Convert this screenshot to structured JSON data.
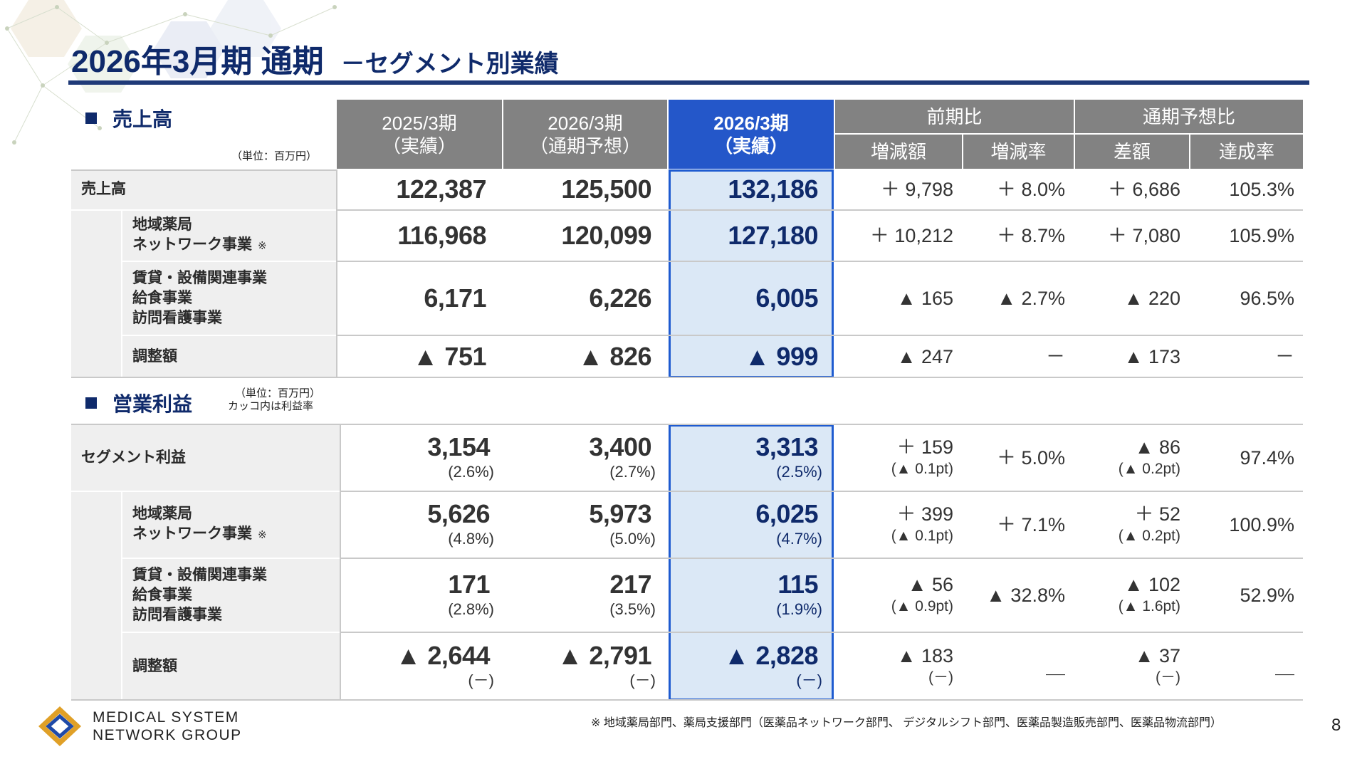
{
  "title": {
    "main": "2026年3月期 通期",
    "sub": "－セグメント別業績"
  },
  "sales": {
    "label": "売上高",
    "unit": "（単位：百万円）",
    "rows": [
      {
        "name": "売上高",
        "l1": "売上高",
        "l2": "",
        "l3": "",
        "note": "",
        "fy25": "122,387",
        "fy26f": "125,500",
        "fy26": "132,186",
        "diff": "＋ 9,798",
        "rate": "＋ 8.0%",
        "fdiff": "＋ 6,686",
        "ach": "105.3%"
      },
      {
        "name": "地域薬局ネットワーク事業",
        "l1": "地域薬局",
        "l2": "ネットワーク事業",
        "l3": "",
        "note": "※",
        "fy25": "116,968",
        "fy26f": "120,099",
        "fy26": "127,180",
        "diff": "＋ 10,212",
        "rate": "＋ 8.7%",
        "fdiff": "＋ 7,080",
        "ach": "105.9%"
      },
      {
        "name": "賃貸・設備関連事業",
        "l1": "賃貸・設備関連事業",
        "l2": "給食事業",
        "l3": "訪問看護事業",
        "note": "",
        "fy25": "6,171",
        "fy26f": "6,226",
        "fy26": "6,005",
        "diff": "▲ 165",
        "rate": "▲ 2.7%",
        "fdiff": "▲ 220",
        "ach": "96.5%"
      },
      {
        "name": "調整額",
        "l1": "調整額",
        "l2": "",
        "l3": "",
        "note": "",
        "fy25": "▲ 751",
        "fy26f": "▲ 826",
        "fy26": "▲ 999",
        "diff": "▲ 247",
        "rate": "－",
        "fdiff": "▲ 173",
        "ach": "－"
      }
    ]
  },
  "headers": {
    "fy25_l1": "2025/3期",
    "fy25_l2": "（実績）",
    "fy26f_l1": "2026/3期",
    "fy26f_l2": "（通期予想）",
    "fy26_l1": "2026/3期",
    "fy26_l2": "（実績）",
    "yoy": "前期比",
    "diff": "増減額",
    "rate": "増減率",
    "vsf": "通期予想比",
    "fdiff": "差額",
    "ach": "達成率"
  },
  "op": {
    "label": "営業利益",
    "unit_l1": "（単位：百万円）",
    "unit_l2": "カッコ内は利益率",
    "rows": [
      {
        "l1": "セグメント利益",
        "l2": "",
        "l3": "",
        "note": "",
        "fy25": "3,154",
        "fy25m": "(2.6%)",
        "fy26f": "3,400",
        "fy26fm": "(2.7%)",
        "fy26": "3,313",
        "fy26m": "(2.5%)",
        "diff": "＋ 159",
        "diffs": "(▲ 0.1pt)",
        "rate": "＋ 5.0%",
        "fdiff": "▲ 86",
        "fdiffs": "(▲ 0.2pt)",
        "ach": "97.4%"
      },
      {
        "l1": "地域薬局",
        "l2": "ネットワーク事業",
        "l3": "",
        "note": "※",
        "fy25": "5,626",
        "fy25m": "(4.8%)",
        "fy26f": "5,973",
        "fy26fm": "(5.0%)",
        "fy26": "6,025",
        "fy26m": "(4.7%)",
        "diff": "＋ 399",
        "diffs": "(▲ 0.1pt)",
        "rate": "＋ 7.1%",
        "fdiff": "＋ 52",
        "fdiffs": "(▲ 0.2pt)",
        "ach": "100.9%"
      },
      {
        "l1": "賃貸・設備関連事業",
        "l2": "給食事業",
        "l3": "訪問看護事業",
        "note": "",
        "fy25": "171",
        "fy25m": "(2.8%)",
        "fy26f": "217",
        "fy26fm": "(3.5%)",
        "fy26": "115",
        "fy26m": "(1.9%)",
        "diff": "▲ 56",
        "diffs": "(▲ 0.9pt)",
        "rate": "▲ 32.8%",
        "fdiff": "▲ 102",
        "fdiffs": "(▲ 1.6pt)",
        "ach": "52.9%"
      },
      {
        "l1": "調整額",
        "l2": "",
        "l3": "",
        "note": "",
        "fy25": "▲ 2,644",
        "fy25m": "(－)",
        "fy26f": "▲ 2,791",
        "fy26fm": "(－)",
        "fy26": "▲ 2,828",
        "fy26m": "(－)",
        "diff": "▲ 183",
        "diffs": "(－)",
        "rate": "＿",
        "fdiff": "▲ 37",
        "fdiffs": "(－)",
        "ach": "＿"
      }
    ]
  },
  "footnote": "※ 地域薬局部門、薬局支援部門（医薬品ネットワーク部門、 デジタルシフト部門、医薬品製造販売部門、医薬品物流部門）",
  "page_number": "8",
  "logo": {
    "line1": "MEDICAL SYSTEM",
    "line2": "NETWORK GROUP",
    "colors": {
      "outer": "#e0a027",
      "inner": "#1f4aa8"
    }
  }
}
